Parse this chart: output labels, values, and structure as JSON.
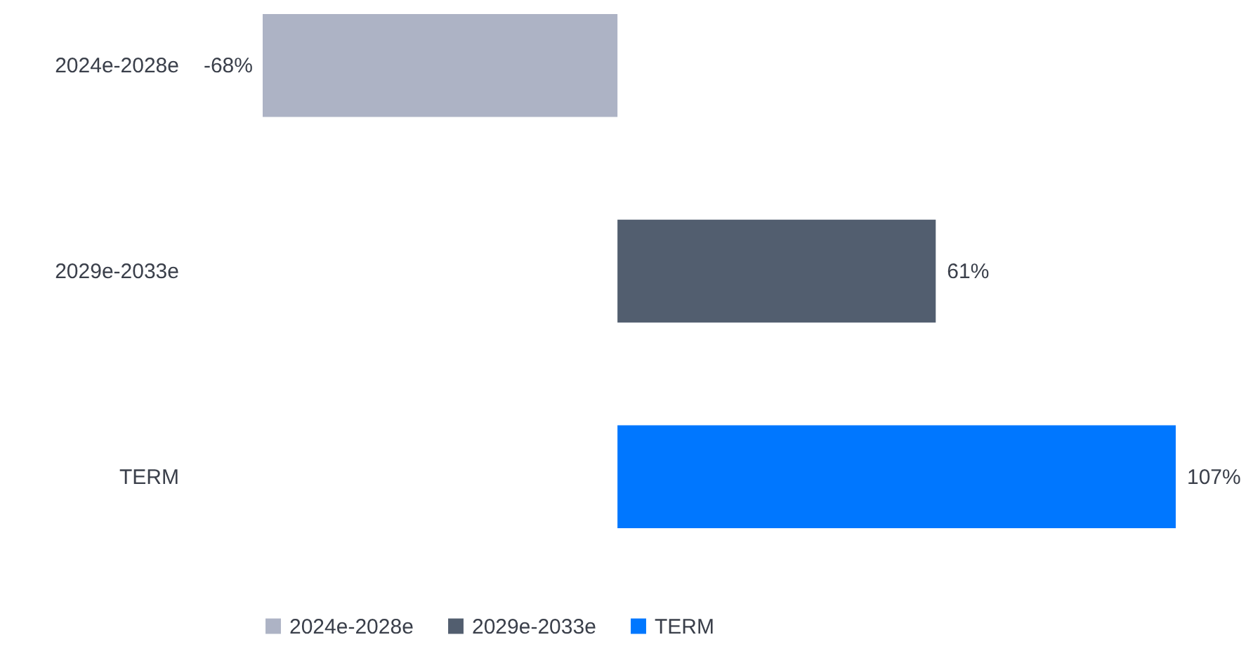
{
  "chart_data": {
    "type": "bar",
    "orientation": "horizontal",
    "legend": "bottom",
    "categories": [
      "2024e-2028e",
      "2029e-2033e",
      "TERM"
    ],
    "series": [
      {
        "name": "2024e-2028e",
        "color": "#adb3c5",
        "values": [
          -68,
          null,
          null
        ],
        "value_labels": [
          "-68%",
          null,
          null
        ]
      },
      {
        "name": "2029e-2033e",
        "color": "#525e6f",
        "values": [
          null,
          61,
          null
        ],
        "value_labels": [
          null,
          "61%",
          null
        ]
      },
      {
        "name": "TERM",
        "color": "#0077ff",
        "values": [
          null,
          null,
          107
        ],
        "value_labels": [
          null,
          null,
          "107%"
        ]
      }
    ]
  }
}
